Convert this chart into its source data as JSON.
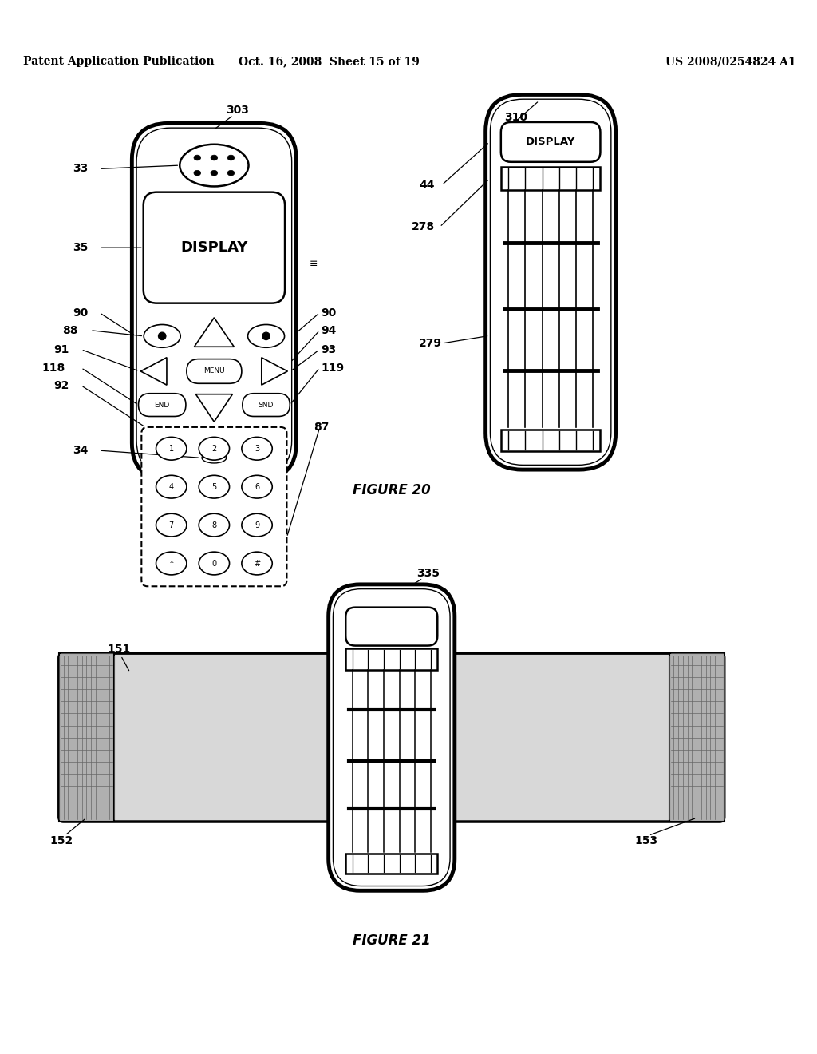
{
  "header_left": "Patent Application Publication",
  "header_mid": "Oct. 16, 2008  Sheet 15 of 19",
  "header_right": "US 2008/0254824 A1",
  "figure20_label": "FIGURE 20",
  "figure21_label": "FIGURE 21",
  "bg_color": "#ffffff"
}
